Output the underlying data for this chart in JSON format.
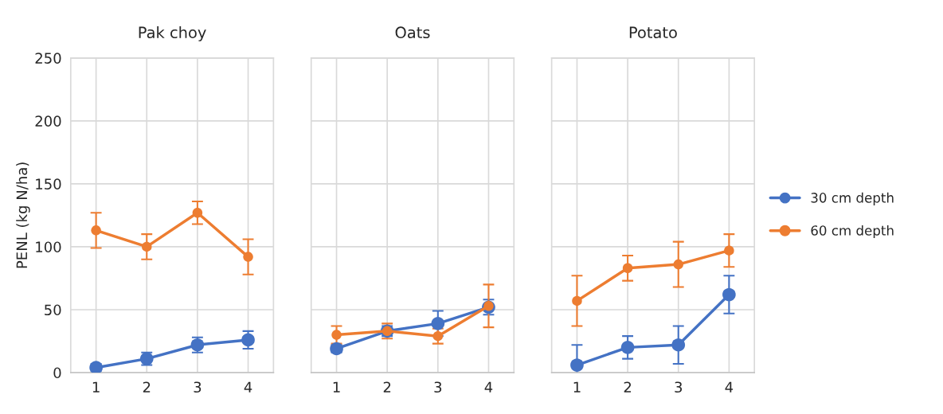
{
  "chart_data": [
    {
      "type": "line",
      "title": "Pak choy",
      "ylabel": "PENL (kg N/ha)",
      "categories": [
        "1",
        "2",
        "3",
        "4"
      ],
      "ylim": [
        0,
        250
      ],
      "yticks": [
        0,
        50,
        100,
        150,
        200,
        250
      ],
      "grid": true,
      "marker": "circle",
      "legend": false,
      "series": [
        {
          "color": "#4472c4",
          "values": [
            4,
            11,
            22,
            26
          ],
          "errors": [
            3,
            5,
            6,
            7
          ]
        },
        {
          "color": "#ed7d31",
          "values": [
            113,
            100,
            127,
            92
          ],
          "errors": [
            14,
            10,
            9,
            14
          ]
        }
      ]
    },
    {
      "type": "line",
      "title": "Oats",
      "categories": [
        "1",
        "2",
        "3",
        "4"
      ],
      "ylim": [
        0,
        250
      ],
      "yticks": [
        0,
        50,
        100,
        150,
        200,
        250
      ],
      "tick_labels": "x",
      "grid": true,
      "marker": "circle",
      "legend": false,
      "series": [
        {
          "color": "#4472c4",
          "values": [
            19,
            33,
            39,
            52
          ],
          "errors": [
            3,
            4,
            10,
            6
          ]
        },
        {
          "color": "#ed7d31",
          "values": [
            30,
            33,
            29,
            53
          ],
          "errors": [
            7,
            6,
            6,
            17
          ]
        }
      ]
    },
    {
      "type": "line",
      "title": "Potato",
      "categories": [
        "1",
        "2",
        "3",
        "4"
      ],
      "ylim": [
        0,
        250
      ],
      "yticks": [
        0,
        50,
        100,
        150,
        200,
        250
      ],
      "tick_labels": "x",
      "grid": true,
      "marker": "circle",
      "legend": "right",
      "series": [
        {
          "name": "30 cm depth",
          "color": "#4472c4",
          "values": [
            6,
            20,
            22,
            62
          ],
          "errors": [
            16,
            9,
            15,
            15
          ]
        },
        {
          "name": "60 cm depth",
          "color": "#ed7d31",
          "values": [
            57,
            83,
            86,
            97
          ],
          "errors": [
            20,
            10,
            18,
            13
          ]
        }
      ]
    }
  ]
}
